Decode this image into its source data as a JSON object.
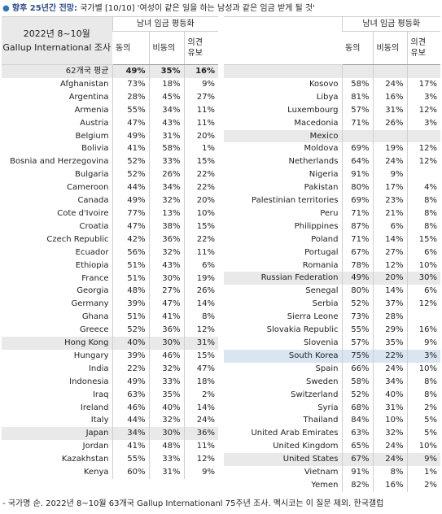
{
  "header": {
    "title": "향후 25년간 전망:",
    "subtitle": "국가별 [10/10] '여성이 같은 일을 하는 남성과 같은 임금 받게 될 것'"
  },
  "tables": [
    {
      "corner": [
        "2022년 8~10월",
        "Gallup International 조사"
      ],
      "group": "남녀 임금 평등화",
      "columns": [
        "동의",
        "비동의",
        "의견\n유보"
      ],
      "average": [
        "62개국 평균",
        "49%",
        "35%",
        "16%"
      ],
      "rows": [
        {
          "cells": [
            "Afghanistan",
            "73%",
            "18%",
            "9%"
          ]
        },
        {
          "cells": [
            "Argentina",
            "28%",
            "45%",
            "27%"
          ]
        },
        {
          "cells": [
            "Armenia",
            "55%",
            "34%",
            "11%"
          ]
        },
        {
          "cells": [
            "Austria",
            "47%",
            "43%",
            "11%"
          ]
        },
        {
          "cells": [
            "Belgium",
            "49%",
            "31%",
            "20%"
          ]
        },
        {
          "cells": [
            "Bolivia",
            "41%",
            "58%",
            "1%"
          ]
        },
        {
          "cells": [
            "Bosnia and Herzegovina",
            "52%",
            "33%",
            "15%"
          ]
        },
        {
          "cells": [
            "Bulgaria",
            "52%",
            "26%",
            "22%"
          ]
        },
        {
          "cells": [
            "Cameroon",
            "44%",
            "34%",
            "22%"
          ]
        },
        {
          "cells": [
            "Canada",
            "49%",
            "32%",
            "20%"
          ]
        },
        {
          "cells": [
            "Cote d'Ivoire",
            "77%",
            "13%",
            "10%"
          ]
        },
        {
          "cells": [
            "Croatia",
            "47%",
            "38%",
            "15%"
          ]
        },
        {
          "cells": [
            "Czech Republic",
            "42%",
            "36%",
            "22%"
          ]
        },
        {
          "cells": [
            "Ecuador",
            "56%",
            "32%",
            "11%"
          ]
        },
        {
          "cells": [
            "Ethiopia",
            "51%",
            "43%",
            "6%"
          ]
        },
        {
          "cells": [
            "France",
            "51%",
            "30%",
            "19%"
          ]
        },
        {
          "cells": [
            "Georgia",
            "48%",
            "27%",
            "26%"
          ]
        },
        {
          "cells": [
            "Germany",
            "39%",
            "47%",
            "14%"
          ]
        },
        {
          "cells": [
            "Ghana",
            "51%",
            "41%",
            "8%"
          ]
        },
        {
          "cells": [
            "Greece",
            "52%",
            "36%",
            "12%"
          ]
        },
        {
          "cells": [
            "Hong Kong",
            "40%",
            "30%",
            "31%"
          ],
          "shade": "#e9e9e9"
        },
        {
          "cells": [
            "Hungary",
            "39%",
            "46%",
            "15%"
          ]
        },
        {
          "cells": [
            "India",
            "22%",
            "32%",
            "47%"
          ]
        },
        {
          "cells": [
            "Indonesia",
            "49%",
            "33%",
            "18%"
          ]
        },
        {
          "cells": [
            "Iraq",
            "63%",
            "35%",
            "2%"
          ]
        },
        {
          "cells": [
            "Ireland",
            "46%",
            "40%",
            "14%"
          ]
        },
        {
          "cells": [
            "Italy",
            "44%",
            "32%",
            "24%"
          ]
        },
        {
          "cells": [
            "Japan",
            "34%",
            "30%",
            "36%"
          ],
          "shade": "#e9e9e9"
        },
        {
          "cells": [
            "Jordan",
            "41%",
            "48%",
            "11%"
          ]
        },
        {
          "cells": [
            "Kazakhstan",
            "55%",
            "33%",
            "12%"
          ]
        },
        {
          "cells": [
            "Kenya",
            "60%",
            "31%",
            "9%"
          ]
        }
      ]
    },
    {
      "group": "남녀 임금 평등화",
      "columns": [
        "동의",
        "비동의",
        "의견\n유보"
      ],
      "rows": [
        {
          "cells": [
            "Kosovo",
            "58%",
            "24%",
            "17%"
          ]
        },
        {
          "cells": [
            "Libya",
            "81%",
            "16%",
            "3%"
          ]
        },
        {
          "cells": [
            "Luxembourg",
            "57%",
            "31%",
            "12%"
          ]
        },
        {
          "cells": [
            "Macedonia",
            "71%",
            "26%",
            "3%"
          ]
        },
        {
          "cells": [
            "Mexico",
            null,
            null,
            null
          ],
          "shade": "#e9e9e9"
        },
        {
          "cells": [
            "Moldova",
            "69%",
            "19%",
            "12%"
          ]
        },
        {
          "cells": [
            "Netherlands",
            "64%",
            "24%",
            "12%"
          ]
        },
        {
          "cells": [
            "Nigeria",
            "91%",
            "9%",
            null
          ]
        },
        {
          "cells": [
            "Pakistan",
            "80%",
            "17%",
            "4%"
          ]
        },
        {
          "cells": [
            "Palestinian territories",
            "69%",
            "23%",
            "8%"
          ]
        },
        {
          "cells": [
            "Peru",
            "71%",
            "21%",
            "8%"
          ]
        },
        {
          "cells": [
            "Philippines",
            "87%",
            "6%",
            "8%"
          ]
        },
        {
          "cells": [
            "Poland",
            "71%",
            "14%",
            "15%"
          ]
        },
        {
          "cells": [
            "Portugal",
            "67%",
            "27%",
            "6%"
          ]
        },
        {
          "cells": [
            "Romania",
            "78%",
            "12%",
            "10%"
          ]
        },
        {
          "cells": [
            "Russian Federation",
            "49%",
            "20%",
            "30%"
          ],
          "shade": "#e9e9e9"
        },
        {
          "cells": [
            "Senegal",
            "80%",
            "14%",
            "6%"
          ]
        },
        {
          "cells": [
            "Serbia",
            "52%",
            "37%",
            "12%"
          ]
        },
        {
          "cells": [
            "Sierra Leone",
            "73%",
            "28%",
            null
          ]
        },
        {
          "cells": [
            "Slovakia Republic",
            "55%",
            "29%",
            "16%"
          ]
        },
        {
          "cells": [
            "Slovenia",
            "57%",
            "35%",
            "9%"
          ]
        },
        {
          "cells": [
            "South Korea",
            "75%",
            "22%",
            "3%"
          ],
          "shade": "#dae5f2"
        },
        {
          "cells": [
            "Spain",
            "66%",
            "24%",
            "10%"
          ]
        },
        {
          "cells": [
            "Sweden",
            "58%",
            "34%",
            "8%"
          ]
        },
        {
          "cells": [
            "Switzerland",
            "52%",
            "40%",
            "8%"
          ]
        },
        {
          "cells": [
            "Syria",
            "68%",
            "31%",
            "2%"
          ]
        },
        {
          "cells": [
            "Thailand",
            "84%",
            "10%",
            "5%"
          ]
        },
        {
          "cells": [
            "United Arab Emirates",
            "63%",
            "32%",
            "5%"
          ]
        },
        {
          "cells": [
            "United Kingdom",
            "65%",
            "24%",
            "10%"
          ]
        },
        {
          "cells": [
            "United States",
            "67%",
            "24%",
            "9%"
          ],
          "shade": "#e9e9e9"
        },
        {
          "cells": [
            "Vietnam",
            "91%",
            "8%",
            "1%"
          ]
        },
        {
          "cells": [
            "Yemen",
            "82%",
            "16%",
            "2%"
          ]
        }
      ]
    }
  ],
  "footer": "- 국가명 순. 2022년 8~10월 63개국 Gallup Internationanl 75주년 조사. 멕시코는 이 질문 제외. 한국갤럽"
}
